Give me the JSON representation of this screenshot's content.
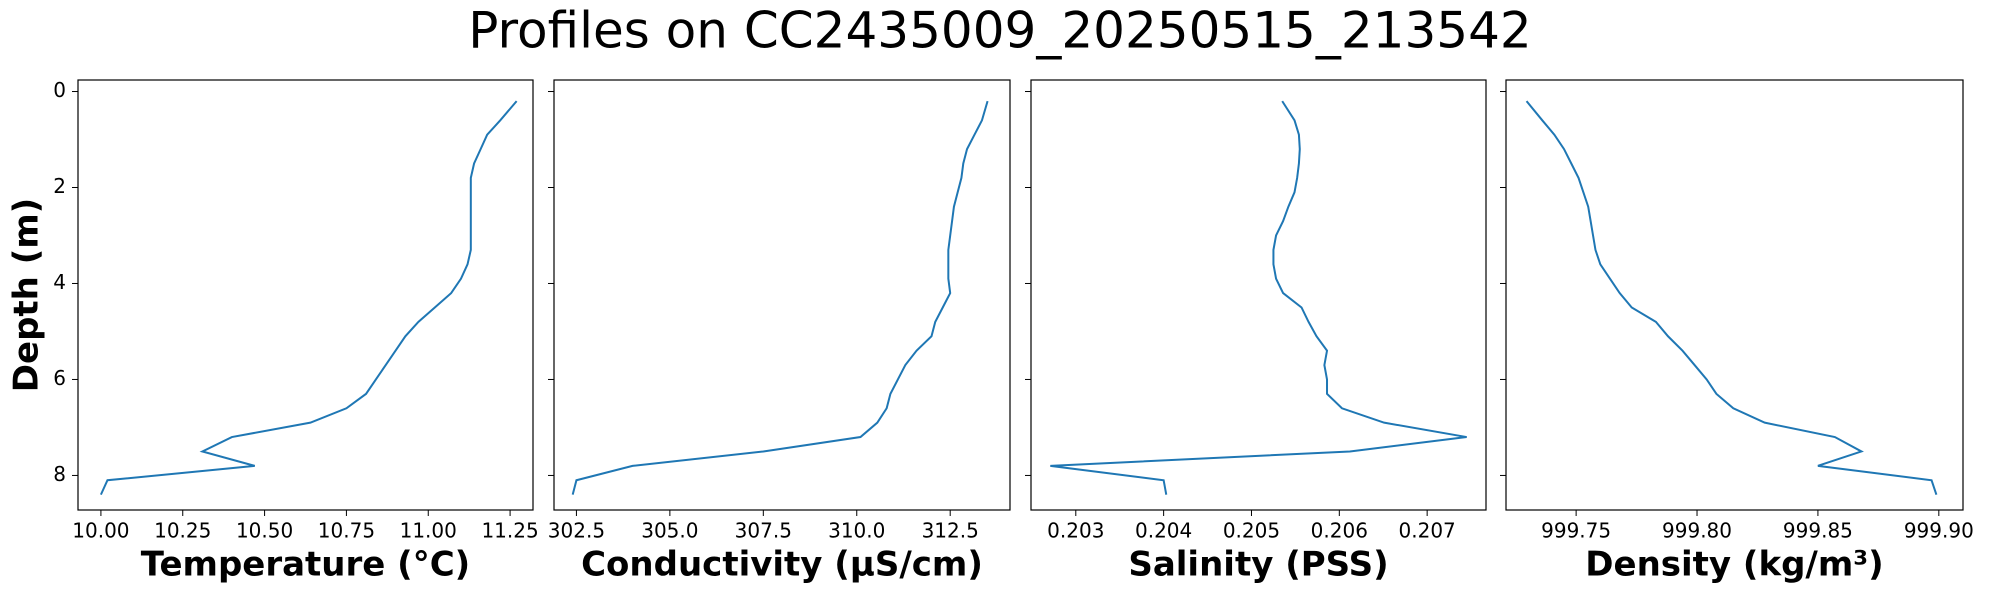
{
  "title": "Profiles on CC2435009_20250515_213542",
  "chart_data": [
    {
      "type": "line",
      "xlabel": "Temperature (°C)",
      "ylabel": "Depth (m)",
      "show_ytick_labels": true,
      "color": "#1f77b4",
      "values": [
        11.27,
        11.22,
        11.18,
        11.16,
        11.14,
        11.13,
        11.13,
        11.13,
        11.13,
        11.13,
        11.13,
        11.12,
        11.1,
        11.07,
        11.02,
        10.97,
        10.93,
        10.9,
        10.87,
        10.84,
        10.81,
        10.75,
        10.64,
        10.4,
        10.31,
        10.47,
        10.02,
        10.0
      ],
      "depth": [
        0.2,
        0.6,
        0.9,
        1.2,
        1.5,
        1.8,
        2.1,
        2.4,
        2.7,
        3.0,
        3.3,
        3.6,
        3.9,
        4.2,
        4.5,
        4.8,
        5.1,
        5.4,
        5.7,
        6.0,
        6.3,
        6.6,
        6.9,
        7.2,
        7.5,
        7.8,
        8.1,
        8.4
      ],
      "xlim": [
        9.93,
        11.32
      ],
      "xticks": [
        {
          "value": 10,
          "label": "10.00"
        },
        {
          "value": 10.25,
          "label": "10.25"
        },
        {
          "value": 10.5,
          "label": "10.50"
        },
        {
          "value": 10.75,
          "label": "10.75"
        },
        {
          "value": 11,
          "label": "11.00"
        },
        {
          "value": 11.25,
          "label": "11.25"
        }
      ],
      "ylim": [
        8.72,
        -0.24
      ],
      "yticks": [
        0,
        2,
        4,
        6,
        8
      ]
    },
    {
      "type": "line",
      "xlabel": "Conductivity (µS/cm)",
      "show_ytick_labels": false,
      "color": "#1f77b4",
      "values": [
        313.5,
        313.35,
        313.15,
        312.95,
        312.85,
        312.8,
        312.7,
        312.6,
        312.55,
        312.5,
        312.45,
        312.45,
        312.45,
        312.5,
        312.3,
        312.1,
        312.0,
        311.6,
        311.3,
        311.1,
        310.9,
        310.8,
        310.55,
        310.1,
        307.5,
        304.0,
        302.5,
        302.4
      ],
      "depth": [
        0.2,
        0.6,
        0.9,
        1.2,
        1.5,
        1.8,
        2.1,
        2.4,
        2.7,
        3.0,
        3.3,
        3.6,
        3.9,
        4.2,
        4.5,
        4.8,
        5.1,
        5.4,
        5.7,
        6.0,
        6.3,
        6.6,
        6.9,
        7.2,
        7.5,
        7.8,
        8.1,
        8.4
      ],
      "xlim": [
        301.9,
        314.1
      ],
      "xticks": [
        302.5,
        {
          "value": 305,
          "label": "305.0"
        },
        307.5,
        {
          "value": 310,
          "label": "310.0"
        },
        312.5
      ],
      "ylim": [
        8.72,
        -0.24
      ],
      "yticks": [
        0,
        2,
        4,
        6,
        8
      ]
    },
    {
      "type": "line",
      "xlabel": "Salinity (PSS)",
      "show_ytick_labels": false,
      "color": "#1f77b4",
      "values": [
        0.20535,
        0.20549,
        0.20554,
        0.20555,
        0.20554,
        0.20552,
        0.20549,
        0.20542,
        0.20536,
        0.20528,
        0.20525,
        0.20525,
        0.20528,
        0.20536,
        0.20557,
        0.20565,
        0.20574,
        0.20586,
        0.20583,
        0.20586,
        0.20586,
        0.20603,
        0.20651,
        0.20745,
        0.20612,
        0.20271,
        0.204,
        0.20403
      ],
      "depth": [
        0.2,
        0.6,
        0.9,
        1.2,
        1.5,
        1.8,
        2.1,
        2.4,
        2.7,
        3.0,
        3.3,
        3.6,
        3.9,
        4.2,
        4.5,
        4.8,
        5.1,
        5.4,
        5.7,
        6.0,
        6.3,
        6.6,
        6.9,
        7.2,
        7.5,
        7.8,
        8.1,
        8.4
      ],
      "xlim": [
        0.20249,
        0.20767
      ],
      "xticks": [
        0.203,
        0.204,
        0.205,
        0.206,
        0.207
      ],
      "ylim": [
        8.72,
        -0.24
      ],
      "yticks": [
        0,
        2,
        4,
        6,
        8
      ]
    },
    {
      "type": "line",
      "xlabel": "Density (kg/m³)",
      "show_ytick_labels": false,
      "color": "#1f77b4",
      "values": [
        999.7295,
        999.736,
        999.741,
        999.745,
        999.748,
        999.751,
        999.753,
        999.755,
        999.756,
        999.757,
        999.758,
        999.76,
        999.764,
        999.768,
        999.773,
        999.783,
        999.788,
        999.794,
        999.799,
        999.804,
        999.808,
        999.815,
        999.828,
        999.857,
        999.868,
        999.85,
        999.897,
        999.899
      ],
      "depth": [
        0.2,
        0.6,
        0.9,
        1.2,
        1.5,
        1.8,
        2.1,
        2.4,
        2.7,
        3.0,
        3.3,
        3.6,
        3.9,
        4.2,
        4.5,
        4.8,
        5.1,
        5.4,
        5.7,
        6.0,
        6.3,
        6.6,
        6.9,
        7.2,
        7.5,
        7.8,
        8.1,
        8.4
      ],
      "xlim": [
        999.721,
        999.91
      ],
      "xticks": [
        999.75,
        {
          "value": 999.8,
          "label": "999.80"
        },
        999.85,
        {
          "value": 999.9,
          "label": "999.90"
        }
      ],
      "ylim": [
        8.72,
        -0.24
      ],
      "yticks": [
        0,
        2,
        4,
        6,
        8
      ]
    }
  ]
}
